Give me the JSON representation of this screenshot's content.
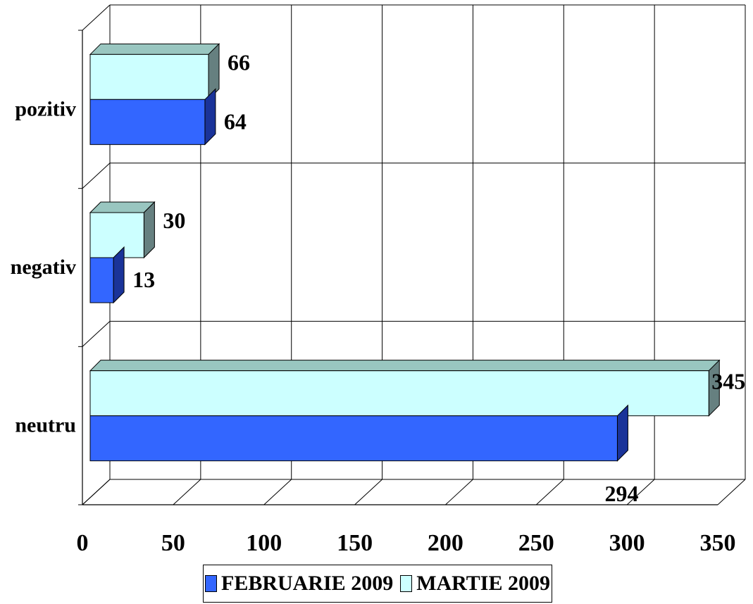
{
  "chart_data": {
    "type": "bar",
    "orientation": "horizontal",
    "three_d": true,
    "categories": [
      "pozitiv",
      "negativ",
      "neutru"
    ],
    "series": [
      {
        "name": "FEBRUARIE 2009",
        "values": [
          64,
          13,
          294
        ],
        "color": "#3366ff",
        "side_color": "#1a3399"
      },
      {
        "name": "MARTIE 2009",
        "values": [
          66,
          30,
          345
        ],
        "color": "#ccffff",
        "side_color": "#668080"
      }
    ],
    "xlim": [
      0,
      350
    ],
    "xticks": [
      "0",
      "50",
      "100",
      "150",
      "200",
      "250",
      "300",
      "350"
    ],
    "grid": true,
    "legend_position": "bottom",
    "title": "",
    "xlabel": "",
    "ylabel": ""
  }
}
